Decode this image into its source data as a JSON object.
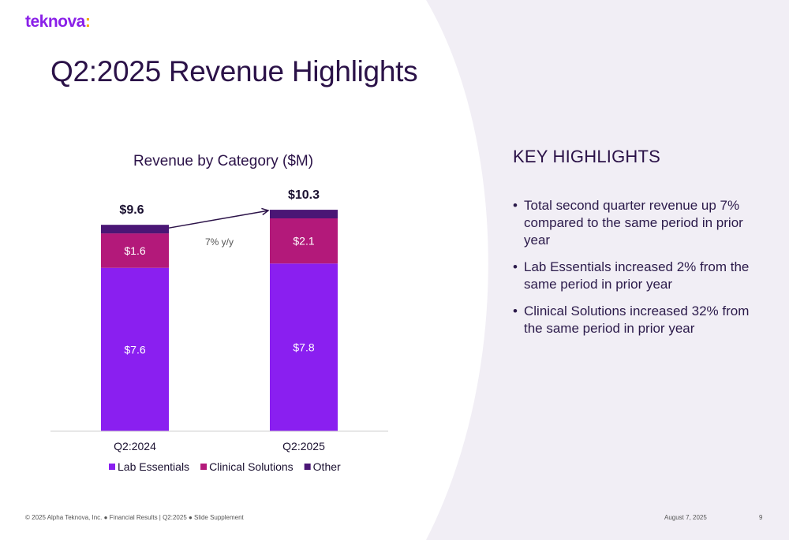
{
  "brand": {
    "name": "teknova",
    "mark": ":"
  },
  "slide": {
    "title": "Q2:2025 Revenue Highlights"
  },
  "colors": {
    "lab_essentials": "#8a1ff0",
    "clinical_solutions": "#b3197a",
    "other": "#4a1675",
    "background_panel": "#f1eef5"
  },
  "chart_data": {
    "type": "bar",
    "stacked": true,
    "title": "Revenue by Category ($M)",
    "categories": [
      "Q2:2024",
      "Q2:2025"
    ],
    "series": [
      {
        "name": "Lab Essentials",
        "values": [
          7.6,
          7.8
        ],
        "labels": [
          "$7.6",
          "$7.8"
        ],
        "color": "#8a1ff0"
      },
      {
        "name": "Clinical Solutions",
        "values": [
          1.6,
          2.1
        ],
        "labels": [
          "$1.6",
          "$2.1"
        ],
        "color": "#b3197a"
      },
      {
        "name": "Other",
        "values": [
          0.4,
          0.4
        ],
        "labels": [
          "",
          ""
        ],
        "color": "#4a1675"
      }
    ],
    "totals": [
      9.6,
      10.3
    ],
    "total_labels": [
      "$9.6",
      "$10.3"
    ],
    "growth_annotation": "7% y/y",
    "ylim": [
      0,
      11
    ],
    "legend_position": "bottom",
    "grid": false
  },
  "highlights": {
    "heading": "KEY HIGHLIGHTS",
    "items": [
      "Total second quarter revenue up 7% compared to the same period in prior year",
      "Lab Essentials increased 2% from the same period in prior year",
      "Clinical Solutions increased 32% from the same period in prior year"
    ]
  },
  "footer": {
    "left": "© 2025 Alpha Teknova, Inc.  ●  Financial Results | Q2:2025  ●  Slide Supplement",
    "date": "August 7, 2025",
    "page": "9"
  }
}
